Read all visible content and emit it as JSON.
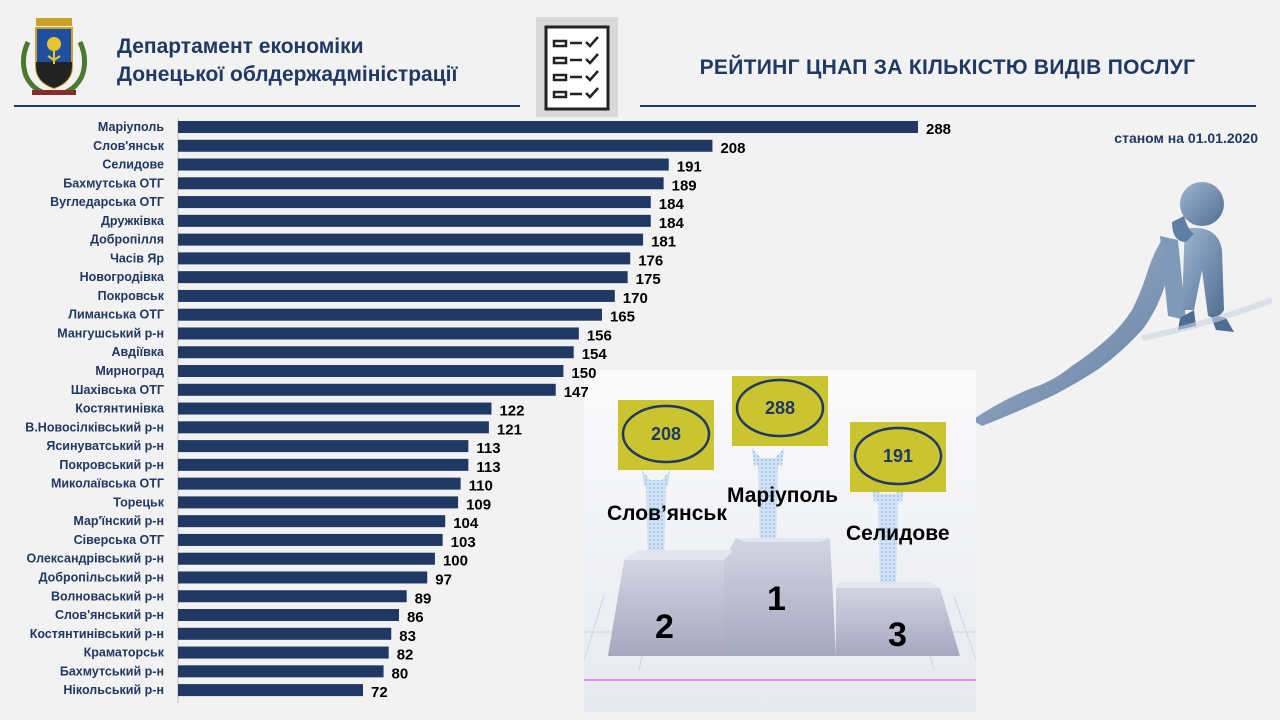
{
  "header": {
    "department_line1": "Департамент економіки",
    "department_line2": "Донецької облдержадміністрації",
    "title": "РЕЙТИНГ ЦНАП ЗА КІЛЬКІСТЮ ВИДІВ ПОСЛУГ",
    "date_note": "станом на 01.01.2020"
  },
  "colors": {
    "bar": "#1f3864",
    "label": "#1f3864",
    "value": "#000000",
    "podium_sign": "#c9c430",
    "accent": "#1f3864"
  },
  "icons": {
    "crest": "coat-of-arms-icon",
    "checklist": "checklist-icon",
    "thinker": "thinker-figure-icon"
  },
  "podium": {
    "first": {
      "place": "1",
      "name": "Маріуполь",
      "value": "288"
    },
    "second": {
      "place": "2",
      "name": "Слов’янськ",
      "value": "208"
    },
    "third": {
      "place": "3",
      "name": "Селидове",
      "value": "191"
    }
  },
  "chart_data": {
    "type": "bar",
    "orientation": "horizontal",
    "categories": [
      "Маріуполь",
      "Слов'янськ",
      "Селидове",
      "Бахмутська ОТГ",
      "Вугледарська ОТГ",
      "Дружківка",
      "Добропілля",
      "Часів Яр",
      "Новогродівка",
      "Покровськ",
      "Лиманська ОТГ",
      "Мангушський р-н",
      "Авдіївка",
      "Мирноград",
      "Шахівська ОТГ",
      "Костянтинівка",
      "В.Новосілківський р-н",
      "Ясинуватський р-н",
      "Покровський р-н",
      "Миколаївська ОТГ",
      "Торецьк",
      "Мар'їнский р-н",
      "Сіверська ОТГ",
      "Олександрівський р-н",
      "Добропільський р-н",
      "Волноваський р-н",
      "Слов'янський р-н",
      "Костянтинівський р-н",
      "Краматорськ",
      "Бахмутський р-н",
      "Нікольський р-н"
    ],
    "values": [
      288,
      208,
      191,
      189,
      184,
      184,
      181,
      176,
      175,
      170,
      165,
      156,
      154,
      150,
      147,
      122,
      121,
      113,
      113,
      110,
      109,
      104,
      103,
      100,
      97,
      89,
      86,
      83,
      82,
      80,
      72
    ],
    "title": "РЕЙТИНГ ЦНАП ЗА КІЛЬКІСТЮ ВИДІВ ПОСЛУГ",
    "xlim": [
      0,
      288
    ],
    "grid": false,
    "legend": "none",
    "data_labels": true
  }
}
